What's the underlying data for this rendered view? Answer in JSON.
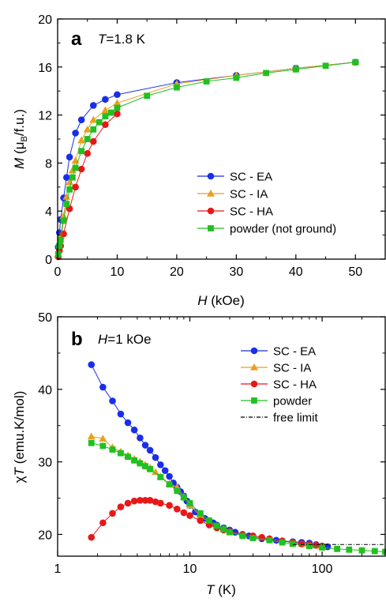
{
  "chart_data": [
    {
      "type": "line",
      "panel_label": "a",
      "annotation": "T=1.8 K",
      "annotation_italic": "T",
      "annotation_rest": "=1.8 K",
      "xlabel_italic": "H",
      "xlabel_rest": " (kOe)",
      "ylabel_italic": "M",
      "ylabel_open": " (μ",
      "ylabel_sub": "B",
      "ylabel_close": "/f.u.)",
      "xlim": [
        0,
        55
      ],
      "ylim": [
        0,
        20
      ],
      "xticks": [
        0,
        10,
        20,
        30,
        40,
        50
      ],
      "yticks": [
        0,
        4,
        8,
        12,
        16,
        20
      ],
      "grid": false,
      "legend_position": "center-right",
      "series": [
        {
          "name": "SC - EA",
          "color": "#1a2ee8",
          "marker": "circle",
          "x": [
            0.1,
            0.3,
            0.5,
            1,
            1.5,
            2,
            3,
            4,
            6,
            8,
            10,
            20,
            30,
            40,
            50
          ],
          "y": [
            1.0,
            2.2,
            3.3,
            5.1,
            6.8,
            8.5,
            10.5,
            11.6,
            12.8,
            13.3,
            13.7,
            14.7,
            15.3,
            15.9,
            16.4
          ]
        },
        {
          "name": "SC - IA",
          "color": "#e8a020",
          "marker": "triangle",
          "x": [
            0.1,
            0.3,
            0.5,
            1,
            1.5,
            2,
            2.5,
            3,
            4,
            5,
            6,
            8,
            10,
            20,
            30,
            40,
            50
          ],
          "y": [
            0.4,
            1.2,
            1.9,
            3.6,
            5.2,
            6.4,
            7.4,
            8.2,
            9.9,
            10.8,
            11.6,
            12.4,
            13.0,
            14.6,
            15.3,
            15.9,
            16.4
          ]
        },
        {
          "name": "SC - HA",
          "color": "#e81818",
          "marker": "circle",
          "x": [
            0.1,
            0.3,
            0.5,
            1,
            2,
            3,
            4,
            5,
            6,
            8,
            10
          ],
          "y": [
            0.2,
            0.7,
            1.1,
            2.1,
            4.2,
            6.0,
            7.5,
            8.8,
            9.8,
            11.2,
            12.1
          ]
        },
        {
          "name": "powder (not ground)",
          "color": "#20c020",
          "marker": "square",
          "x": [
            0.1,
            0.3,
            0.5,
            1,
            1.5,
            2,
            2.5,
            3,
            4,
            5,
            6,
            7,
            8,
            9,
            10,
            15,
            20,
            25,
            30,
            35,
            40,
            45,
            50
          ],
          "y": [
            0.4,
            1.1,
            1.6,
            3.2,
            4.6,
            5.8,
            6.8,
            7.6,
            9.0,
            10.0,
            10.8,
            11.4,
            11.9,
            12.2,
            12.6,
            13.6,
            14.3,
            14.8,
            15.1,
            15.5,
            15.8,
            16.1,
            16.4
          ]
        }
      ]
    },
    {
      "type": "line",
      "panel_label": "b",
      "annotation": "H=1 kOe",
      "annotation_italic": "H",
      "annotation_rest": "=1 kOe",
      "xlabel_italic": "T",
      "xlabel_rest": " (K)",
      "ylabel_chi": "χ",
      "ylabel_italic": "T",
      "ylabel_rest": " (emu.K/mol)",
      "xscale": "log",
      "xlim": [
        1,
        300
      ],
      "ylim": [
        17,
        50
      ],
      "xticks": [
        1,
        10,
        100
      ],
      "xtick_labels": [
        "1",
        "10",
        "100"
      ],
      "yticks": [
        20,
        30,
        40,
        50
      ],
      "grid": false,
      "legend_position": "top-right",
      "series": [
        {
          "name": "SC - EA",
          "color": "#1a2ee8",
          "marker": "circle",
          "x": [
            1.8,
            2.2,
            2.6,
            3.0,
            3.4,
            3.8,
            4.2,
            4.6,
            5.0,
            5.5,
            6.0,
            6.5,
            7.0,
            7.5,
            8.0,
            8.5,
            9.0,
            9.5,
            10,
            11,
            12,
            13,
            14,
            15,
            16,
            18,
            20,
            22,
            25,
            28,
            30,
            35,
            40,
            45,
            50,
            60,
            70,
            80,
            90,
            100,
            110
          ],
          "y": [
            43.4,
            40.3,
            38.4,
            36.6,
            35.4,
            34.4,
            33.3,
            32.3,
            31.6,
            30.6,
            29.6,
            28.8,
            28.0,
            27.1,
            26.5,
            25.9,
            25.3,
            24.6,
            24.0,
            23.1,
            22.6,
            22.2,
            21.9,
            21.6,
            21.3,
            20.9,
            20.6,
            20.3,
            20.0,
            19.8,
            19.6,
            19.4,
            19.3,
            19.2,
            19.1,
            19.0,
            18.9,
            18.8,
            18.6,
            18.4,
            18.3
          ]
        },
        {
          "name": "SC - IA",
          "color": "#e8a020",
          "marker": "triangle",
          "x": [
            1.8,
            2.2,
            2.6,
            3.0,
            3.4,
            3.8,
            4.2,
            4.6,
            5.0,
            5.5,
            6.0,
            7.0,
            8.0,
            9.0,
            10,
            12,
            14,
            16,
            18,
            20,
            25,
            30,
            35,
            40,
            50,
            60,
            70,
            80,
            90,
            100
          ],
          "y": [
            33.5,
            33.2,
            32.0,
            31.4,
            30.9,
            30.4,
            30.0,
            29.6,
            29.2,
            28.6,
            28.0,
            27.0,
            26.5,
            25.2,
            24.0,
            22.6,
            21.6,
            21.1,
            20.8,
            20.4,
            20.0,
            19.8,
            19.6,
            19.4,
            19.1,
            18.9,
            18.7,
            18.6,
            18.5,
            18.4
          ]
        },
        {
          "name": "SC - HA",
          "color": "#e81818",
          "marker": "circle",
          "x": [
            1.8,
            2.2,
            2.6,
            3.0,
            3.4,
            3.8,
            4.2,
            4.6,
            5.0,
            5.5,
            6.0,
            7.0,
            8.0,
            9.0,
            10,
            12,
            14,
            16,
            18,
            20,
            25,
            30,
            35,
            40,
            50,
            60,
            70,
            80,
            90,
            100
          ],
          "y": [
            19.6,
            21.6,
            22.9,
            23.8,
            24.3,
            24.6,
            24.7,
            24.7,
            24.7,
            24.5,
            24.3,
            24.0,
            23.5,
            23.0,
            22.6,
            21.9,
            21.3,
            20.9,
            20.6,
            20.4,
            20.0,
            19.8,
            19.6,
            19.4,
            19.1,
            18.9,
            18.7,
            18.6,
            18.5,
            18.4
          ]
        },
        {
          "name": "powder",
          "color": "#20c020",
          "marker": "square",
          "x": [
            1.8,
            2.2,
            2.6,
            3.0,
            3.4,
            3.8,
            4.2,
            4.6,
            5.0,
            6,
            7,
            8,
            9,
            10,
            12,
            14,
            16,
            18,
            20,
            25,
            30,
            40,
            50,
            60,
            80,
            100,
            130,
            160,
            200,
            250,
            300
          ],
          "y": [
            32.6,
            32.2,
            31.7,
            31.2,
            30.7,
            30.2,
            29.8,
            29.4,
            29.0,
            27.9,
            26.9,
            26.0,
            25.1,
            24.3,
            22.9,
            21.9,
            21.2,
            20.7,
            20.3,
            19.8,
            19.5,
            19.2,
            18.9,
            18.7,
            18.4,
            18.2,
            18.0,
            17.9,
            17.8,
            17.7,
            17.6
          ]
        },
        {
          "name": "free limit",
          "color": "#000000",
          "style": "dash-dot",
          "x": [
            60,
            300
          ],
          "y": [
            18.6,
            18.6
          ]
        }
      ]
    }
  ]
}
